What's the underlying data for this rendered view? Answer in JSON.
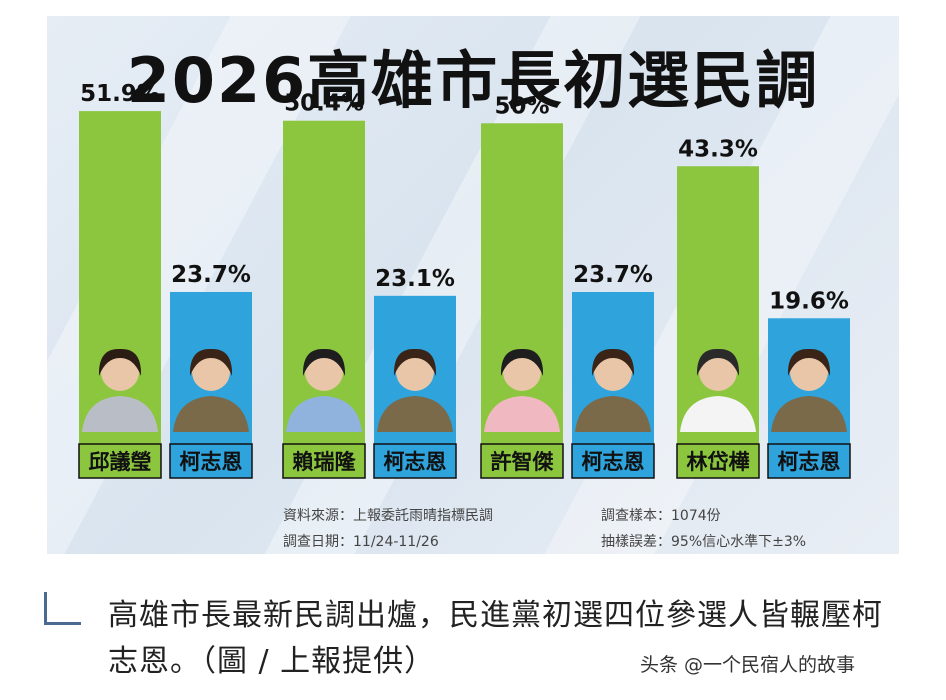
{
  "chart_data": {
    "type": "bar",
    "title": "2026高雄市長初選民調",
    "series_colors": [
      "#8cc63f",
      "#2ea3dc"
    ],
    "groups": [
      {
        "candidate": "邱議瑩",
        "candidate_value": 51.9,
        "candidate_label": "51.9%",
        "opponent": "柯志恩",
        "opponent_value": 23.7,
        "opponent_label": "23.7%"
      },
      {
        "candidate": "賴瑞隆",
        "candidate_value": 50.4,
        "candidate_label": "50.4%",
        "opponent": "柯志恩",
        "opponent_value": 23.1,
        "opponent_label": "23.1%"
      },
      {
        "candidate": "許智傑",
        "candidate_value": 50,
        "candidate_label": "50%",
        "opponent": "柯志恩",
        "opponent_value": 23.7,
        "opponent_label": "23.7%"
      },
      {
        "candidate": "林岱樺",
        "candidate_value": 43.3,
        "candidate_label": "43.3%",
        "opponent": "柯志恩",
        "opponent_value": 19.6,
        "opponent_label": "19.6%"
      }
    ],
    "ylim": [
      0,
      60
    ]
  },
  "source": {
    "data_source": "資料來源：上報委託雨晴指標民調",
    "sample": "調查樣本：1074份",
    "date": "調查日期：11/24-11/26",
    "error": "抽樣誤差：95%信心水準下±3%"
  },
  "caption": {
    "text": "高雄市長最新民調出爐，民進黨初選四位參選人皆輾壓柯志恩。（圖 / 上報提供）"
  },
  "watermark": "头条 @一个民宿人的故事"
}
